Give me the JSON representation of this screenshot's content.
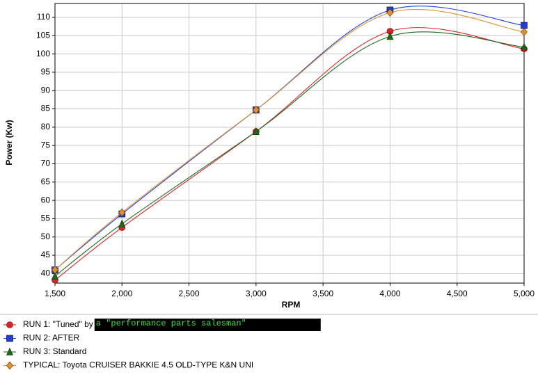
{
  "chart_data": {
    "type": "line",
    "x_label": "RPM",
    "y_label": "Power (Kw)",
    "x": [
      1500,
      2000,
      3000,
      4000,
      5000
    ],
    "series": [
      {
        "name": "RUN 1: \"Tuned\" by",
        "color": "#e0202a",
        "marker": "circle",
        "values": [
          38.2,
          52.6,
          78.8,
          106.2,
          101.4
        ]
      },
      {
        "name": "RUN 2: AFTER",
        "color": "#1f3fd8",
        "marker": "square",
        "values": [
          41.0,
          56.3,
          84.7,
          112.0,
          107.8
        ]
      },
      {
        "name": "RUN 3: Standard",
        "color": "#1a6a1a",
        "marker": "triangle",
        "values": [
          39.3,
          53.6,
          78.8,
          104.8,
          101.9
        ]
      },
      {
        "name": "TYPICAL: Toyota CRUISER BAKKIE 4.5 OLD-TYPE K&N UNI",
        "color": "#e09030",
        "marker": "diamond",
        "values": [
          41.0,
          56.7,
          84.7,
          111.3,
          106.0
        ]
      }
    ],
    "annotation": "a \"performance parts salesman\"",
    "xlim": [
      1500,
      5000
    ],
    "xticks": [
      {
        "value": 1500,
        "label": "1,500"
      },
      {
        "value": 2000,
        "label": "2,000"
      },
      {
        "value": 2500,
        "label": "2,500"
      },
      {
        "value": 3000,
        "label": "3,000"
      },
      {
        "value": 3500,
        "label": "3,500"
      },
      {
        "value": 4000,
        "label": "4,000"
      },
      {
        "value": 4500,
        "label": "4,500"
      },
      {
        "value": 5000,
        "label": "5,000"
      }
    ],
    "ylim": [
      37.4,
      113.8
    ],
    "yticks": [
      40,
      45,
      50,
      55,
      60,
      65,
      70,
      75,
      80,
      85,
      90,
      95,
      100,
      105,
      110
    ],
    "grid": true
  }
}
